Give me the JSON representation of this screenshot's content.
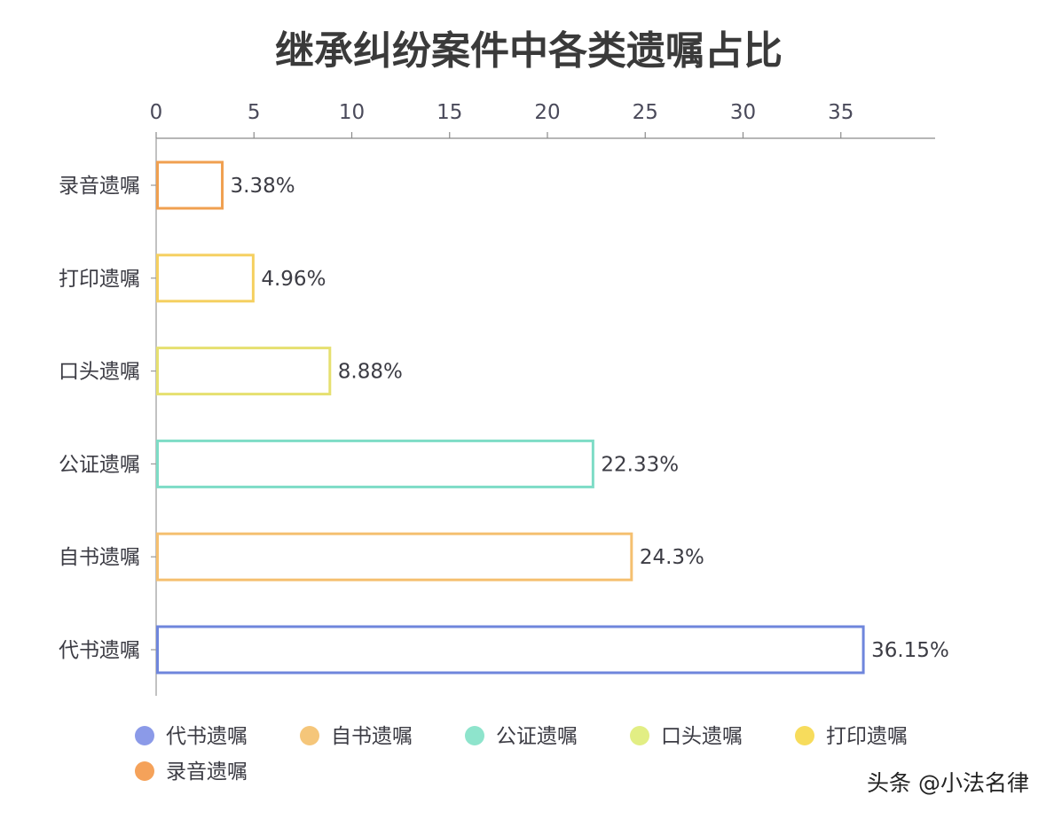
{
  "chart_data": {
    "type": "bar",
    "orientation": "horizontal",
    "title": "继承纠纷案件中各类遗嘱占比",
    "categories": [
      "录音遗嘱",
      "打印遗嘱",
      "口头遗嘱",
      "公证遗嘱",
      "自书遗嘱",
      "代书遗嘱"
    ],
    "values": [
      3.38,
      4.96,
      8.88,
      22.33,
      24.3,
      36.15
    ],
    "data_labels": [
      "3.38%",
      "4.96%",
      "8.88%",
      "22.33%",
      "24.3%",
      "36.15%"
    ],
    "bar_colors": [
      "#f0a050",
      "#f5d060",
      "#e6e070",
      "#7edcc6",
      "#f5c070",
      "#6f86dc"
    ],
    "xlim": [
      0,
      40
    ],
    "xticks": [
      0,
      5,
      10,
      15,
      20,
      25,
      30,
      35
    ],
    "x_axis_position": "top",
    "grid": false,
    "legend": {
      "placement": "bottom",
      "items": [
        {
          "label": "代书遗嘱",
          "color": "#8b9ae8"
        },
        {
          "label": "自书遗嘱",
          "color": "#f5c67a"
        },
        {
          "label": "公证遗嘱",
          "color": "#8ee4cc"
        },
        {
          "label": "口头遗嘱",
          "color": "#e2ee84"
        },
        {
          "label": "打印遗嘱",
          "color": "#f7dc5c"
        },
        {
          "label": "录音遗嘱",
          "color": "#f5a25a"
        }
      ]
    }
  },
  "watermark": "头条 @小法名律"
}
